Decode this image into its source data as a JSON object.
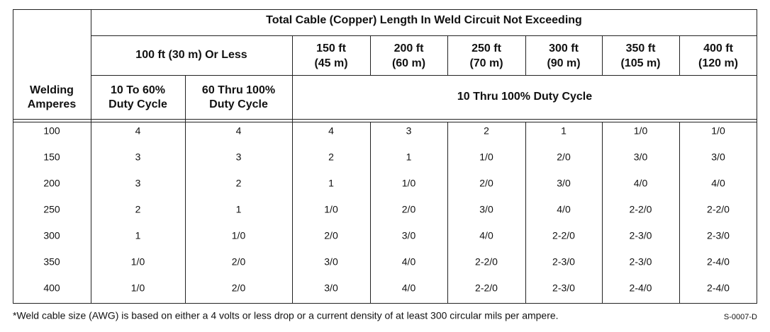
{
  "header": {
    "row_title": [
      "Welding",
      "Amperes"
    ],
    "title": "Total Cable (Copper) Length In Weld Circuit Not Exceeding",
    "group": "100 ft (30 m) Or Less",
    "lengths": [
      [
        "150 ft",
        "(45 m)"
      ],
      [
        "200 ft",
        "(60 m)"
      ],
      [
        "250 ft",
        "(70 m)"
      ],
      [
        "300 ft",
        "(90 m)"
      ],
      [
        "350 ft",
        "(105 m)"
      ],
      [
        "400 ft",
        "(120 m)"
      ]
    ],
    "duty": [
      [
        "10 To 60%",
        "Duty Cycle"
      ],
      [
        "60 Thru 100%",
        "Duty Cycle"
      ]
    ],
    "duty_all": "10 Thru 100% Duty Cycle"
  },
  "table": {
    "rows": [
      [
        "100",
        "4",
        "4",
        "4",
        "3",
        "2",
        "1",
        "1/0",
        "1/0"
      ],
      [
        "150",
        "3",
        "3",
        "2",
        "1",
        "1/0",
        "2/0",
        "3/0",
        "3/0"
      ],
      [
        "200",
        "3",
        "2",
        "1",
        "1/0",
        "2/0",
        "3/0",
        "4/0",
        "4/0"
      ],
      [
        "250",
        "2",
        "1",
        "1/0",
        "2/0",
        "3/0",
        "4/0",
        "2-2/0",
        "2-2/0"
      ],
      [
        "300",
        "1",
        "1/0",
        "2/0",
        "3/0",
        "4/0",
        "2-2/0",
        "2-3/0",
        "2-3/0"
      ],
      [
        "350",
        "1/0",
        "2/0",
        "3/0",
        "4/0",
        "2-2/0",
        "2-3/0",
        "2-3/0",
        "2-4/0"
      ],
      [
        "400",
        "1/0",
        "2/0",
        "3/0",
        "4/0",
        "2-2/0",
        "2-3/0",
        "2-4/0",
        "2-4/0"
      ]
    ]
  },
  "footnote": "*Weld cable size (AWG) is based on either a 4 volts or less drop or a current density of at least 300 circular mils per ampere.",
  "code": "S-0007-D"
}
